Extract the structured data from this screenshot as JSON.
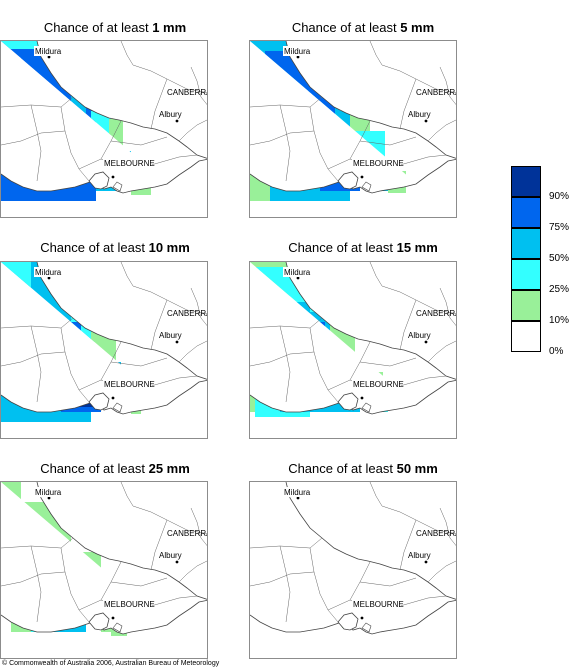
{
  "colors": {
    "c0": "#ffffff",
    "c10": "#99f099",
    "c25": "#33ffff",
    "c50": "#00c0f0",
    "c75": "#0066ee",
    "c90": "#003399"
  },
  "places": {
    "mildura": "Mildura",
    "canberra": "CANBERRA",
    "albury": "Albury",
    "melbourne": "MELBOURNE"
  },
  "panels": [
    {
      "title_prefix": "Chance of at least ",
      "amount": "1 mm"
    },
    {
      "title_prefix": "Chance of at least ",
      "amount": "5 mm"
    },
    {
      "title_prefix": "Chance of at least ",
      "amount": "10 mm"
    },
    {
      "title_prefix": "Chance of at least ",
      "amount": "15 mm"
    },
    {
      "title_prefix": "Chance of at least ",
      "amount": "25 mm"
    },
    {
      "title_prefix": "Chance of at least ",
      "amount": "50 mm"
    }
  ],
  "legend": {
    "items": [
      {
        "color": "#003399",
        "label": "90%"
      },
      {
        "color": "#0066ee",
        "label": "75%"
      },
      {
        "color": "#00c0f0",
        "label": "50%"
      },
      {
        "color": "#33ffff",
        "label": "25%"
      },
      {
        "color": "#99f099",
        "label": "10%"
      },
      {
        "color": "#ffffff",
        "label": "0%"
      }
    ]
  },
  "copyright": "© Commonwealth of Australia 2006, Australian Bureau of Meteorology"
}
